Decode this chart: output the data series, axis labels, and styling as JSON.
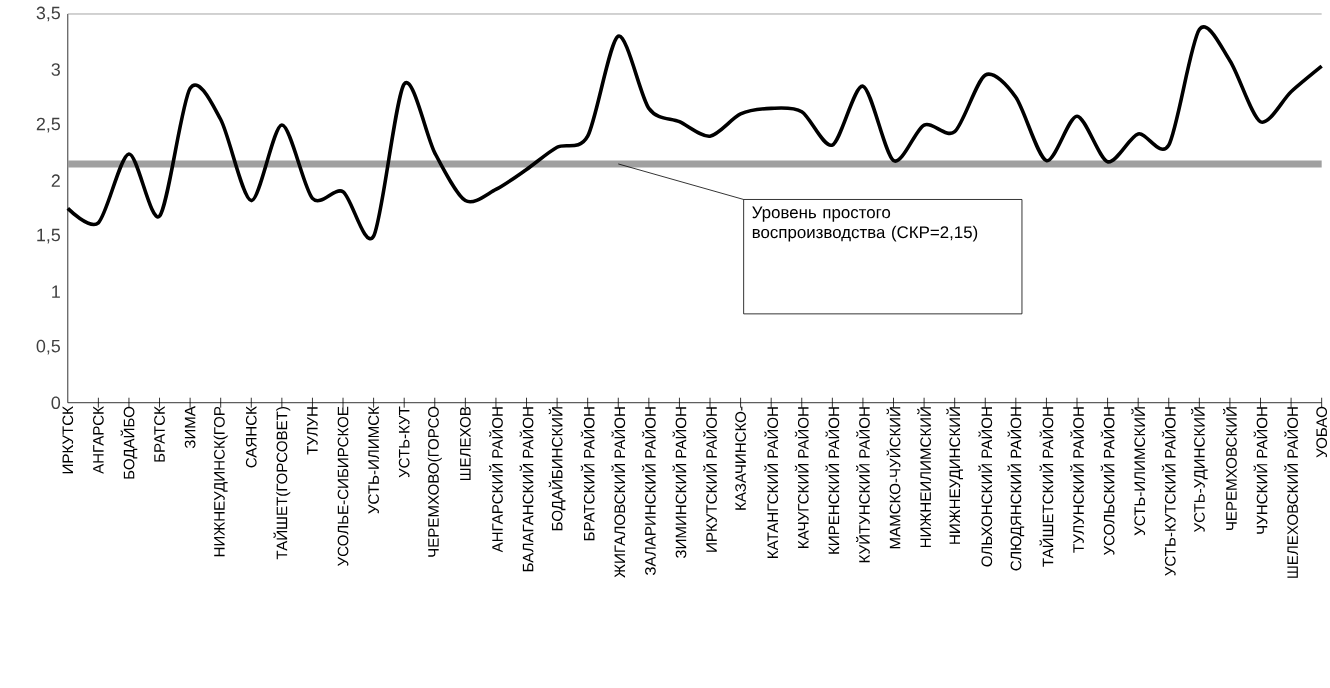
{
  "chart_data": {
    "type": "line",
    "categories": [
      "ИРКУТСК",
      "АНГАРСК",
      "БОДАЙБО",
      "БРАТСК",
      "ЗИМА",
      "НИЖНЕУДИНСК(ГОР",
      "САЯНСК",
      "ТАЙШЕТ(ГОРСОВЕТ)",
      "ТУЛУН",
      "УСОЛЬЕ-СИБИРСКОЕ",
      "УСТЬ-ИЛИМСК",
      "УСТЬ-КУТ",
      "ЧЕРЕМХОВО(ГОРСО",
      "ШЕЛЕХОВ",
      "АНГАРСКИЙ РАЙОН",
      "БАЛАГАНСКИЙ РАЙОН",
      "БОДАЙБИНСКИЙ",
      "БРАТСКИЙ РАЙОН",
      "ЖИГАЛОВСКИЙ РАЙОН",
      "ЗАЛАРИНСКИЙ РАЙОН",
      "ЗИМИНСКИЙ РАЙОН",
      "ИРКУТСКИЙ РАЙОН",
      "КАЗАЧИНСКО-",
      "КАТАНГСКИЙ РАЙОН",
      "КАЧУГСКИЙ РАЙОН",
      "КИРЕНСКИЙ РАЙОН",
      "КУЙТУНСКИЙ РАЙОН",
      "МАМСКО-ЧУЙСКИЙ",
      "НИЖНЕИЛИМСКИЙ",
      "НИЖНЕУДИНСКИЙ",
      "ОЛЬХОНСКИЙ РАЙОН",
      "СЛЮДЯНСКИЙ РАЙОН",
      "ТАЙШЕТСКИЙ РАЙОН",
      "ТУЛУНСКИЙ РАЙОН",
      "УСОЛЬСКИЙ РАЙОН",
      "УСТЬ-ИЛИМСКИЙ",
      "УСТЬ-КУТСКИЙ РАЙОН",
      "УСТЬ-УДИНСКИЙ",
      "ЧЕРЕМХОВСКИЙ",
      "ЧУНСКИЙ РАЙОН",
      "ШЕЛЕХОВСКИЙ РАЙОН",
      "УОБАО"
    ],
    "values": [
      1.75,
      1.62,
      2.24,
      1.68,
      2.83,
      2.55,
      1.82,
      2.5,
      1.84,
      1.9,
      1.5,
      2.87,
      2.25,
      1.82,
      1.92,
      2.1,
      2.3,
      2.4,
      3.3,
      2.65,
      2.53,
      2.4,
      2.6,
      2.65,
      2.62,
      2.32,
      2.85,
      2.18,
      2.5,
      2.44,
      2.95,
      2.75,
      2.18,
      2.58,
      2.17,
      2.42,
      2.32,
      3.36,
      3.08,
      2.53,
      2.8,
      3.03
    ],
    "color": "#000000",
    "ylim": [
      0,
      3.5
    ],
    "yticks": [
      0,
      {
        "value": 0.5,
        "label": "0,5"
      },
      1,
      {
        "value": 1.5,
        "label": "1,5"
      },
      2,
      {
        "value": 2.5,
        "label": "2,5"
      },
      3,
      {
        "value": 3.5,
        "label": "3,5"
      }
    ],
    "ref_lines": [
      {
        "axis": "y",
        "value": 2.15,
        "label": "Уровень простого воспроизводства (СКР=2,15)",
        "color": "#a0a0a0"
      }
    ]
  }
}
